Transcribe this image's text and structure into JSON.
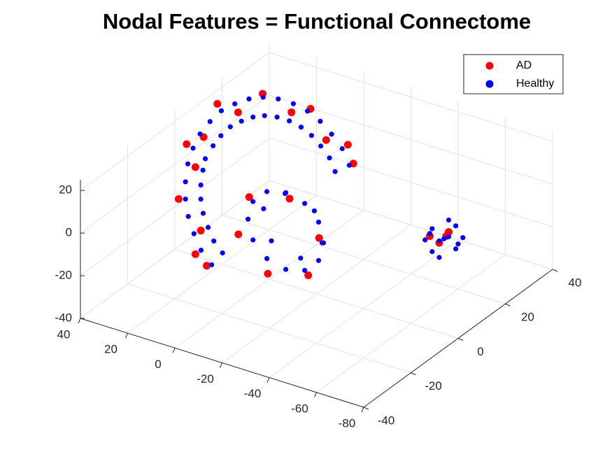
{
  "chart_data": {
    "type": "scatter3d",
    "title": "Nodal Features = Functional Connectome",
    "xlim": [
      -80,
      40
    ],
    "ylim": [
      -40,
      40
    ],
    "zlim": [
      -40,
      25
    ],
    "xticks": [
      -80,
      -60,
      -40,
      -20,
      0,
      20,
      40
    ],
    "yticks": [
      -40,
      -20,
      0,
      20,
      40
    ],
    "zticks": [
      -40,
      -20,
      0,
      20
    ],
    "grid": true,
    "legend": "northeast",
    "series": [
      {
        "name": "AD",
        "color": "#ff0000",
        "x": [
          14,
          30.8,
          38.6,
          35.3,
          21.8,
          1.5,
          -20,
          16.6,
          30.9,
          26.1,
          6.8,
          -11.2,
          7.5,
          33.8,
          -25.6,
          -7.5,
          -24.6,
          -37.1,
          -32.5,
          -15.4,
          -2.9,
          -63,
          -73,
          -67,
          -72
        ],
        "y": [
          -17.3,
          -7.6,
          3.6,
          13.3,
          19,
          19,
          13.3,
          -12.4,
          -0.4,
          12.9,
          16.2,
          12.9,
          -19,
          6,
          10,
          -16,
          -16,
          -16,
          -16,
          -16,
          -16,
          5,
          3,
          8,
          0
        ],
        "z": [
          -19.2,
          -7,
          7,
          19.2,
          24,
          24,
          19.2,
          -13,
          2.1,
          18.7,
          22.8,
          18.7,
          -21,
          10,
          15,
          14,
          19.2,
          5.1,
          -14,
          -19.2,
          -5.1,
          -2,
          5,
          -3,
          2
        ]
      },
      {
        "name": "Healthy",
        "color": "#0000ff",
        "x": [
          6,
          12.7,
          18.5,
          23.9,
          28.3,
          31.7,
          34.3,
          35.5,
          35.7,
          34.5,
          32.5,
          29,
          24.8,
          20,
          14.2,
          7.8,
          1.2,
          -5.4,
          -12,
          -18.7,
          -24.5,
          4.4,
          9.9,
          14.6,
          19.1,
          22.7,
          25.5,
          27.6,
          28.6,
          28.7,
          27.8,
          26.1,
          23.2,
          19.8,
          15.9,
          11.1,
          5.9,
          0.4,
          -5,
          -10.4,
          -15.9,
          -20.6,
          -4,
          -6.1,
          -12,
          -20,
          -28,
          -33.9,
          -36,
          -33.9,
          -28,
          -20,
          -12,
          -6.1,
          -7.6,
          -16.7,
          -29.1,
          -32.4,
          -23.3,
          -10.9,
          -70,
          -65,
          -75,
          -70,
          -70,
          -66,
          -74,
          -68,
          -72,
          -64,
          -76,
          -69,
          -71
        ],
        "y": [
          -18.4,
          -16.2,
          -13.4,
          -10.4,
          -7.2,
          -3.8,
          -0.2,
          3.2,
          6.4,
          9.4,
          12.2,
          14.4,
          16.2,
          17.4,
          18,
          18,
          17.4,
          16.2,
          14.4,
          12.2,
          9.4,
          -15.4,
          -13.6,
          -11.3,
          -8.9,
          -6.3,
          -3.5,
          -0.5,
          1.5,
          4.9,
          7.3,
          9.6,
          11.4,
          12.9,
          13.9,
          14.4,
          14.4,
          13.9,
          12.9,
          11.4,
          9.6,
          7.3,
          -13,
          -13,
          -13,
          -13,
          -13,
          -13,
          -13,
          -13,
          -13,
          -13,
          -13,
          -13,
          -10,
          -10,
          -10,
          -10,
          -10,
          -10,
          4,
          4,
          4,
          9,
          -1,
          6,
          2,
          0,
          8,
          2,
          6,
          7,
          1
        ],
        "z": [
          -20.5,
          -17.8,
          -14.3,
          -10.5,
          -6.5,
          -2.3,
          2.3,
          6.5,
          10.5,
          14.3,
          17.8,
          20.5,
          22.8,
          24.3,
          25,
          25,
          24.3,
          22.8,
          20.5,
          17.8,
          14.3,
          -16.8,
          -14.6,
          -11.7,
          -8.6,
          -5.3,
          -1.9,
          1.9,
          5.3,
          8.6,
          11.7,
          14.6,
          16.8,
          18.7,
          19.9,
          20.5,
          20.5,
          19.9,
          18.7,
          16.8,
          14.6,
          11.7,
          0,
          9,
          15.7,
          18,
          15.7,
          9,
          0,
          -9,
          -15.7,
          -18,
          -15.7,
          -9,
          3.7,
          14,
          10.2,
          -3.7,
          -14,
          -10.2,
          0,
          3,
          -3,
          2,
          -2,
          -4,
          4,
          5,
          -5,
          -1,
          1,
          6,
          -6
        ]
      }
    ]
  }
}
